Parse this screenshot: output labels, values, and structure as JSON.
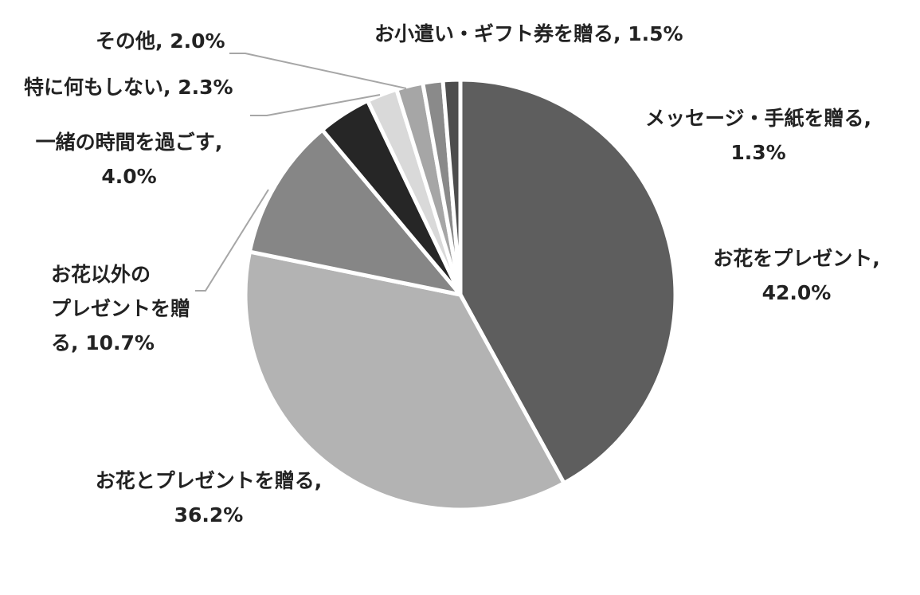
{
  "chart_data": {
    "type": "pie",
    "title": "",
    "slices": [
      {
        "label": "お花をプレゼント",
        "value": 42.0,
        "value_text": "42.0%",
        "color": "#5e5e5e"
      },
      {
        "label": "お花とプレゼントを贈る",
        "value": 36.2,
        "value_text": "36.2%",
        "color": "#b3b3b3"
      },
      {
        "label": "お花以外のプレゼントを贈る",
        "value": 10.7,
        "value_text": "10.7%",
        "color": "#868686"
      },
      {
        "label": "一緒の時間を過ごす",
        "value": 4.0,
        "value_text": "4.0%",
        "color": "#262626"
      },
      {
        "label": "特に何もしない",
        "value": 2.3,
        "value_text": "2.3%",
        "color": "#d9d9d9"
      },
      {
        "label": "その他",
        "value": 2.0,
        "value_text": "2.0%",
        "color": "#a6a6a6"
      },
      {
        "label": "お小遣い・ギフト券を贈る",
        "value": 1.5,
        "value_text": "1.5%",
        "color": "#8a8a8a"
      },
      {
        "label": "メッセージ・手紙を贈る",
        "value": 1.3,
        "value_text": "1.3%",
        "color": "#4d4d4d"
      }
    ],
    "start_angle": "12 o'clock",
    "direction": "clockwise",
    "legend": "none",
    "data_labels": "category name, percentage"
  }
}
